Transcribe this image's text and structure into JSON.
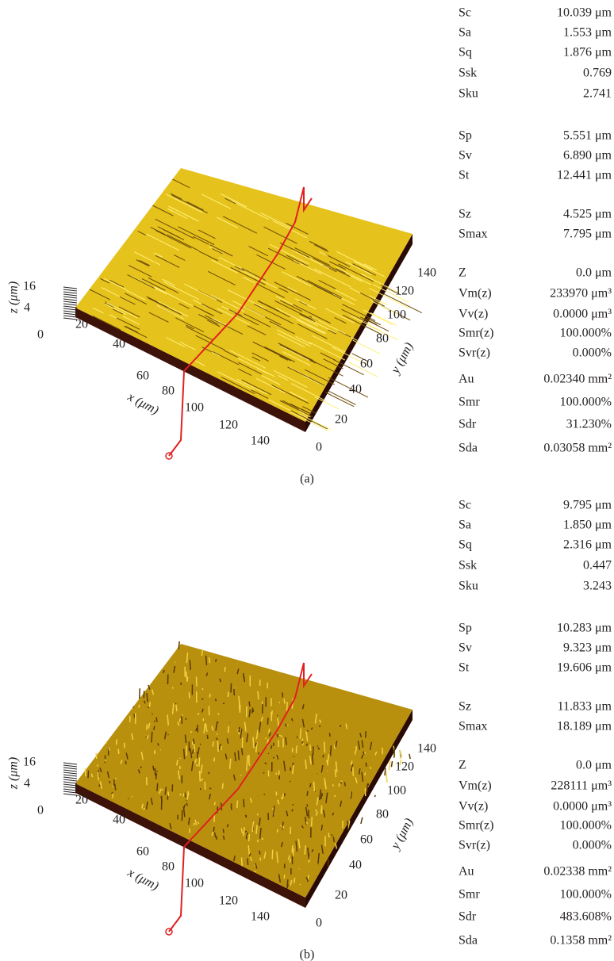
{
  "panels": [
    {
      "label": "(a)",
      "plot": {
        "x_label": "x (μm)",
        "y_label": "y (μm)",
        "z_label": "z (μm)",
        "x_ticks": [
          20,
          40,
          60,
          80,
          100,
          120,
          140
        ],
        "y_ticks": [
          0,
          20,
          40,
          60,
          80,
          100,
          120,
          140
        ],
        "z_ticks": [
          16,
          4,
          0
        ]
      },
      "parameters": [
        [
          [
            "Sc",
            "10.039 μm"
          ],
          [
            "Sa",
            "1.553 μm"
          ],
          [
            "Sq",
            "1.876 μm"
          ],
          [
            "Ssk",
            "0.769"
          ],
          [
            "Sku",
            "2.741"
          ]
        ],
        [
          [
            "Sp",
            "5.551 μm"
          ],
          [
            "Sv",
            "6.890 μm"
          ],
          [
            "St",
            "12.441 μm"
          ]
        ],
        [
          [
            "Sz",
            "4.525 μm"
          ],
          [
            "Smax",
            "7.795 μm"
          ]
        ],
        [
          [
            "Z",
            "0.0 μm"
          ],
          [
            "Vm(z)",
            "233970 μm³"
          ],
          [
            "Vv(z)",
            "0.0000 μm³"
          ],
          [
            "Smr(z)",
            "100.000%"
          ],
          [
            "Svr(z)",
            "0.000%"
          ],
          [
            "Au",
            "0.02340 mm²"
          ],
          [
            "Smr",
            "100.000%"
          ],
          [
            "Sdr",
            "31.230%"
          ],
          [
            "Sda",
            "0.03058 mm²"
          ]
        ]
      ]
    },
    {
      "label": "(b)",
      "plot": {
        "x_label": "x (μm)",
        "y_label": "y (μm)",
        "z_label": "z (μm)",
        "x_ticks": [
          20,
          40,
          60,
          80,
          100,
          120,
          140
        ],
        "y_ticks": [
          0,
          20,
          40,
          60,
          80,
          100,
          120,
          140
        ],
        "z_ticks": [
          16,
          4,
          0
        ]
      },
      "parameters": [
        [
          [
            "Sc",
            "9.795 μm"
          ],
          [
            "Sa",
            "1.850 μm"
          ],
          [
            "Sq",
            "2.316 μm"
          ],
          [
            "Ssk",
            "0.447"
          ],
          [
            "Sku",
            "3.243"
          ]
        ],
        [
          [
            "Sp",
            "10.283 μm"
          ],
          [
            "Sv",
            "9.323 μm"
          ],
          [
            "St",
            "19.606 μm"
          ]
        ],
        [
          [
            "Sz",
            "11.833 μm"
          ],
          [
            "Smax",
            "18.189 μm"
          ]
        ],
        [
          [
            "Z",
            "0.0 μm"
          ],
          [
            "Vm(z)",
            "228111 μm³"
          ],
          [
            "Vv(z)",
            "0.0000 μm³"
          ],
          [
            "Smr(z)",
            "100.000%"
          ],
          [
            "Svr(z)",
            "0.000%"
          ],
          [
            "Au",
            "0.02338 mm²"
          ],
          [
            "Smr",
            "100.000%"
          ],
          [
            "Sdr",
            "483.608%"
          ],
          [
            "Sda",
            "0.1358 mm²"
          ]
        ]
      ]
    }
  ]
}
